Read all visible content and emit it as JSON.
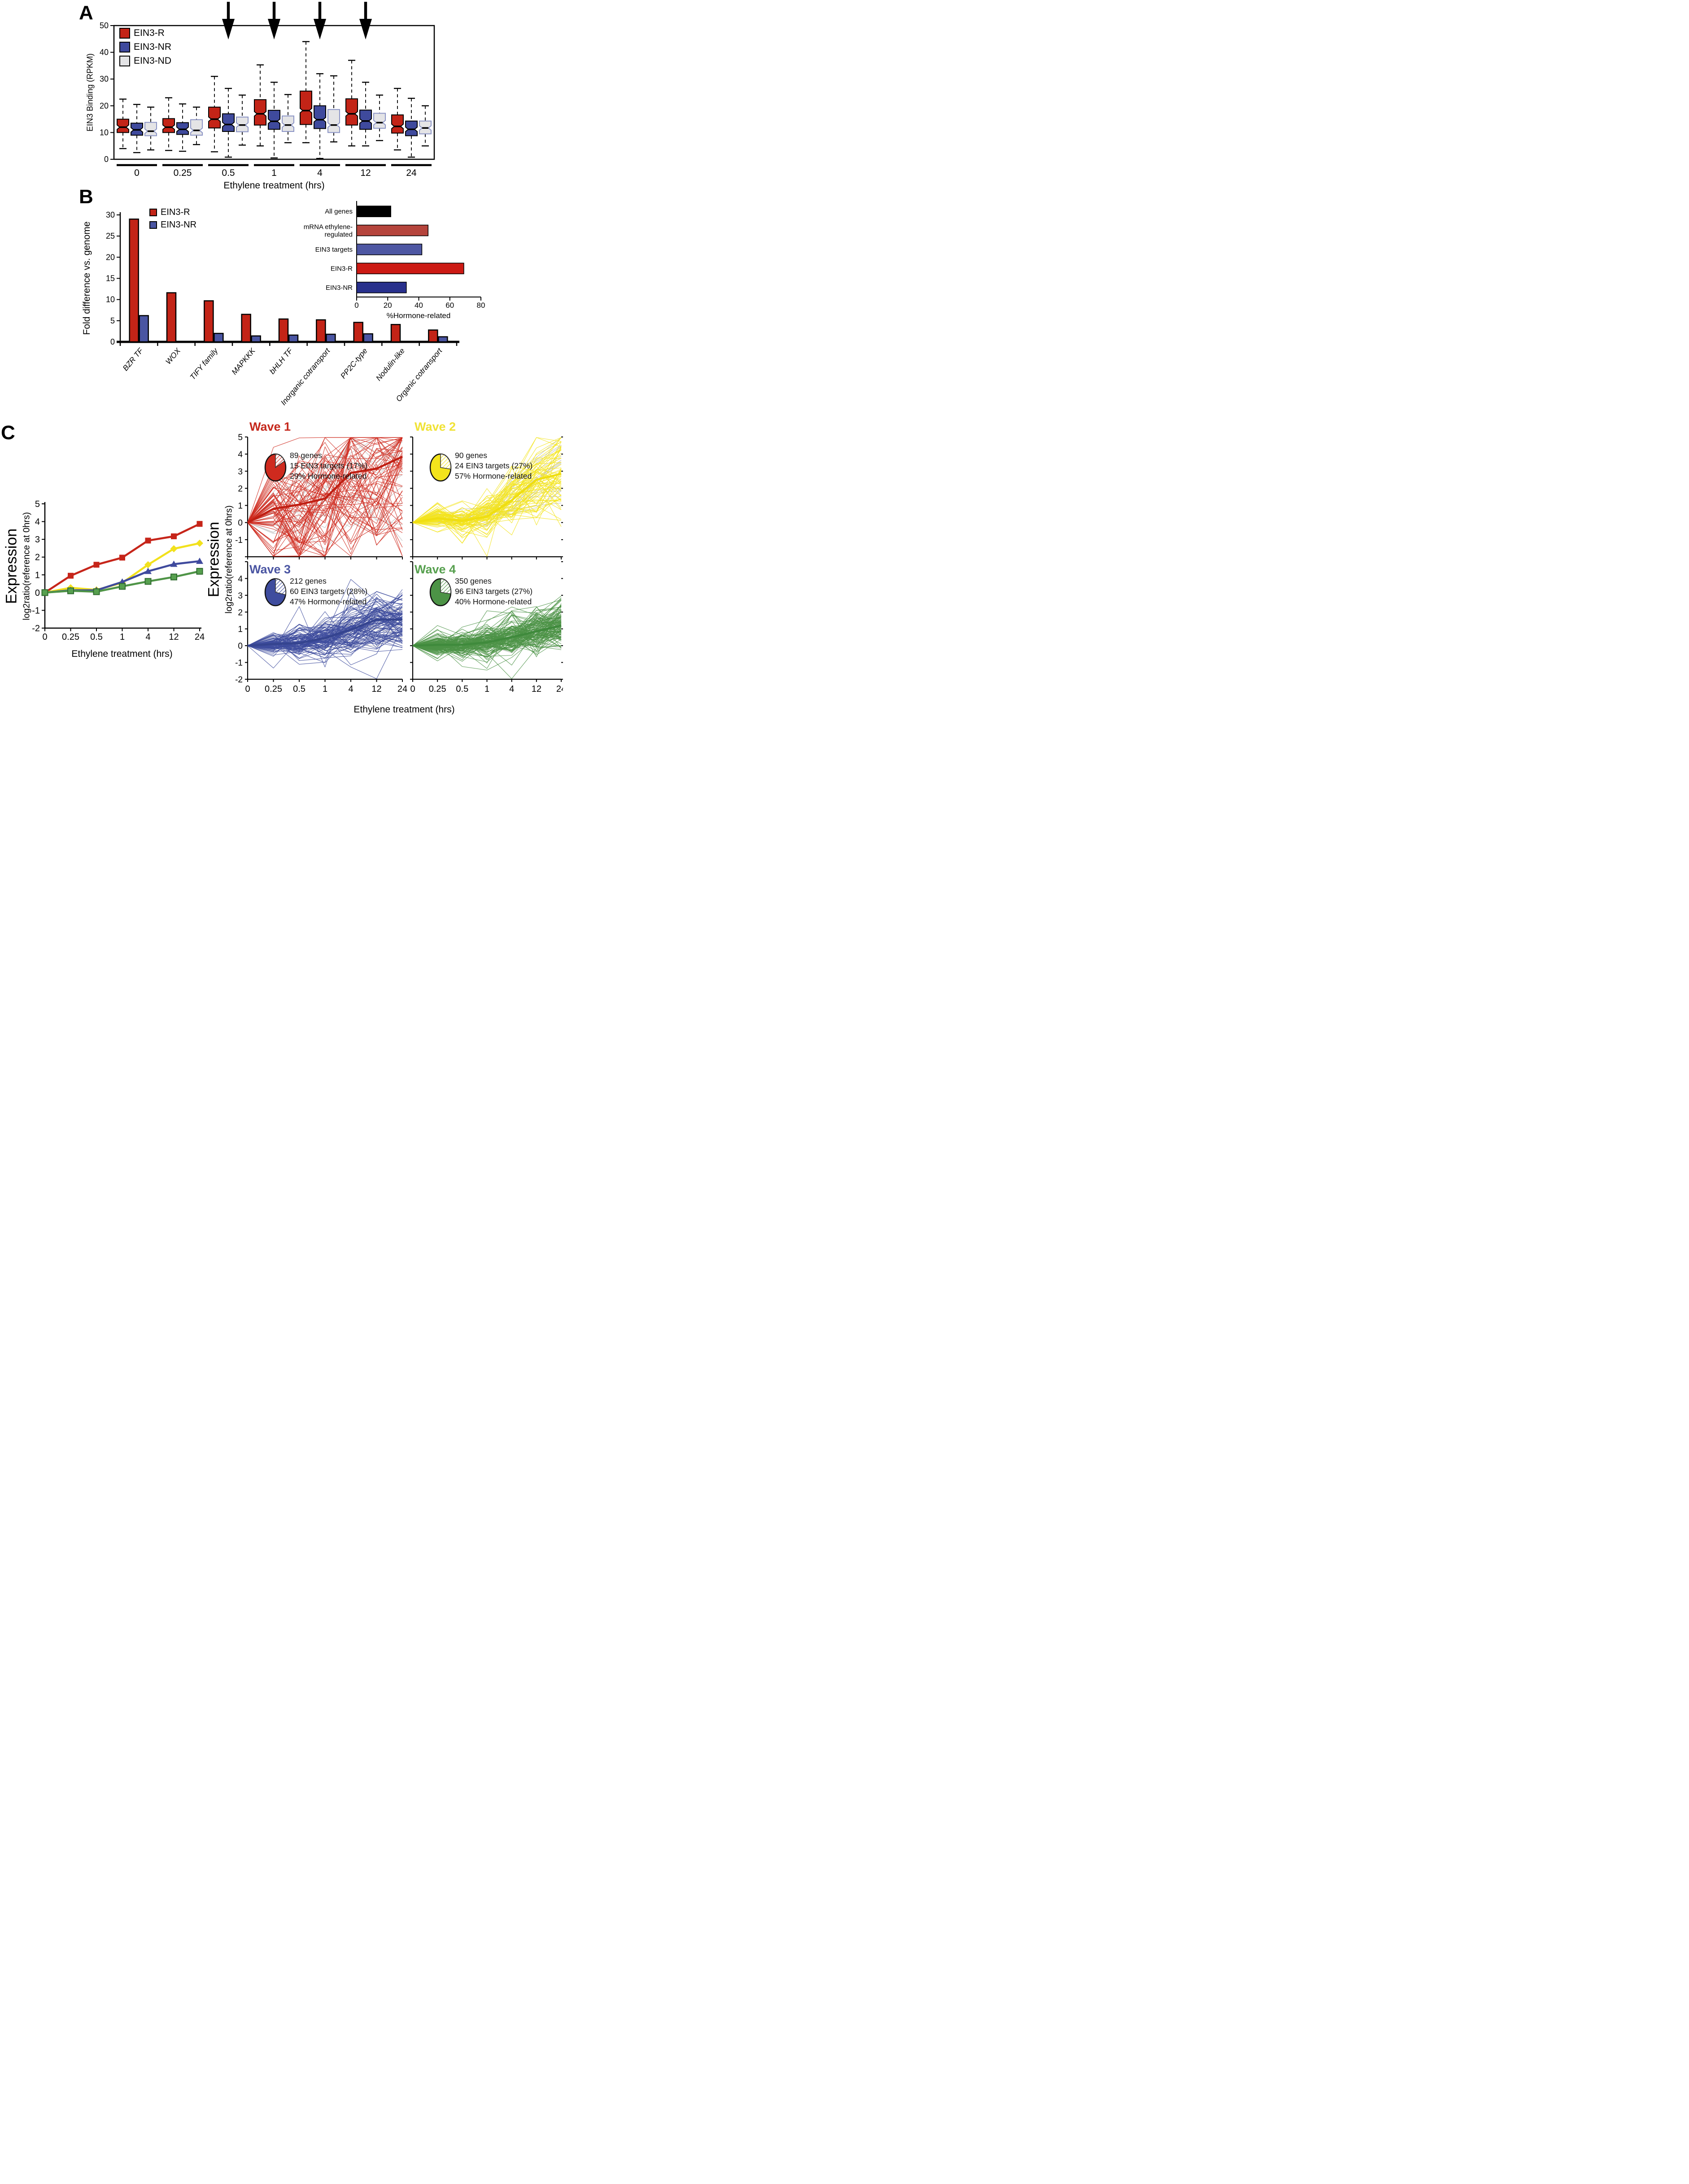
{
  "c_shared": {
    "ylabel": "Expression",
    "ylabel_sub": "log2ratio(reference at 0hrs)",
    "xlabel": "Ethylene treatment (hrs)"
  },
  "chart_data": [
    {
      "id": "panelA",
      "type": "boxplot",
      "panel_label": "A",
      "ylabel": "EIN3 Binding (RPKM)",
      "xlabel": "Ethylene treatment (hrs)",
      "ylim": [
        0,
        50
      ],
      "yticks": [
        0,
        10,
        20,
        30,
        40,
        50
      ],
      "categories": [
        "0",
        "0.25",
        "0.5",
        "1",
        "4",
        "12",
        "24"
      ],
      "arrows_at_categories": [
        "0.5",
        "1",
        "4",
        "12"
      ],
      "series": [
        {
          "name": "EIN3-R",
          "color": "#C32417",
          "edge": "#000000",
          "boxes": [
            [
              4,
              10,
              12,
              15,
              22.5
            ],
            [
              3.3,
              10,
              12,
              15.2,
              23
            ],
            [
              2.8,
              11.7,
              15,
              19.5,
              31
            ],
            [
              5,
              12.8,
              17,
              22.3,
              35.3
            ],
            [
              6.2,
              13,
              18.2,
              25.5,
              44
            ],
            [
              5,
              12.8,
              17,
              22.6,
              37
            ],
            [
              3.5,
              9.8,
              12.3,
              16.6,
              26.5
            ]
          ]
        },
        {
          "name": "EIN3-NR",
          "color": "#3F4A9D",
          "edge": "#000000",
          "boxes": [
            [
              2.5,
              9,
              11,
              13.5,
              20.5
            ],
            [
              3,
              9.3,
              11.2,
              13.7,
              20.7
            ],
            [
              0.8,
              10.4,
              13,
              17,
              26.5
            ],
            [
              0.5,
              11.2,
              14.2,
              18.3,
              28.8
            ],
            [
              0.3,
              11.5,
              14.8,
              20,
              32
            ],
            [
              5,
              11.2,
              14.3,
              18.4,
              28.8
            ],
            [
              0.8,
              8.8,
              11.2,
              14.3,
              22.8
            ]
          ]
        },
        {
          "name": "EIN3-ND",
          "color": "#E4E4E6",
          "edge": "#8B94C5",
          "boxes": [
            [
              3.5,
              8.8,
              10.5,
              13.8,
              19.5
            ],
            [
              5.5,
              9,
              10.8,
              14.8,
              19.5
            ],
            [
              5.3,
              10.3,
              12.8,
              15.8,
              24
            ],
            [
              6.2,
              10.4,
              12.8,
              16.2,
              24.2
            ],
            [
              6.5,
              10,
              12.8,
              18.6,
              31.2
            ],
            [
              7,
              11.6,
              13.7,
              17.2,
              24
            ],
            [
              5,
              9.5,
              11.7,
              14.3,
              20
            ]
          ]
        }
      ]
    },
    {
      "id": "panelB",
      "type": "bar",
      "panel_label": "B",
      "ylabel": "Fold difference vs. genome",
      "ylim": [
        0,
        30
      ],
      "yticks": [
        0,
        5,
        10,
        15,
        20,
        25,
        30
      ],
      "categories": [
        "BZR TF",
        "WOX",
        "TIFY family",
        "MAPKKK",
        "bHLH TF",
        "Inorganic cotransport",
        "PP2C-type",
        "Nodulin-like",
        "Organic cotransport"
      ],
      "series": [
        {
          "name": "EIN3-R",
          "color": "#C32417",
          "values": [
            29,
            11.6,
            9.7,
            6.5,
            5.4,
            5.2,
            4.6,
            4.1,
            2.8
          ]
        },
        {
          "name": "EIN3-NR",
          "color": "#4A55A2",
          "values": [
            6.2,
            0,
            2,
            1.4,
            1.6,
            1.8,
            1.9,
            0,
            1.2
          ]
        }
      ]
    },
    {
      "id": "panelB_inset",
      "type": "bar-horizontal",
      "xlabel": "%Hormone-related",
      "xlim": [
        0,
        80
      ],
      "xticks": [
        0,
        20,
        40,
        60,
        80
      ],
      "categories": [
        "All genes",
        "mRNA ethylene-regulated",
        "EIN3 targets",
        "EIN3-R",
        "EIN3-NR"
      ],
      "values": [
        22,
        46,
        42,
        69,
        32
      ],
      "colors": [
        "#000000",
        "#B5443C",
        "#4E57A3",
        "#CC1A14",
        "#28308C"
      ]
    },
    {
      "id": "panelC_left",
      "type": "line",
      "panel_label": "C",
      "ylabel": "Expression",
      "ylabel_sub": "log2ratio(reference at 0hrs)",
      "xlabel": "Ethylene treatment (hrs)",
      "ylim": [
        -2,
        5
      ],
      "yticks": [
        -2,
        -1,
        0,
        1,
        2,
        3,
        4,
        5
      ],
      "categories": [
        "0",
        "0.25",
        "0.5",
        "1",
        "4",
        "12",
        "24"
      ],
      "series": [
        {
          "name": "Wave 1",
          "color": "#C6251A",
          "marker": "square",
          "values": [
            0,
            0.95,
            1.57,
            1.97,
            2.93,
            3.17,
            3.87
          ]
        },
        {
          "name": "Wave 2",
          "color": "#F2E11C",
          "marker": "diamond",
          "values": [
            0,
            0.27,
            0.15,
            0.55,
            1.57,
            2.47,
            2.78
          ]
        },
        {
          "name": "Wave 3",
          "color": "#3F4A9D",
          "marker": "triangle",
          "values": [
            0,
            0.13,
            0.13,
            0.6,
            1.2,
            1.6,
            1.77
          ]
        },
        {
          "name": "Wave 4",
          "color": "#4F9447",
          "marker": "square-green",
          "values": [
            0,
            0.1,
            0.05,
            0.35,
            0.63,
            0.88,
            1.2
          ]
        }
      ]
    },
    {
      "id": "wave1",
      "type": "line-ensemble",
      "title": "Wave 1",
      "title_color": "#C5281C",
      "color": "#CF2A1E",
      "bold_color": "#C01F13",
      "n_genes": 89,
      "pie_fraction": 0.17,
      "stats": [
        "89 genes",
        "15 EIN3 targets (17%)",
        "29% Hormone-related"
      ],
      "mean": [
        0,
        0.8,
        1.05,
        1.4,
        2.9,
        3.15,
        3.85
      ],
      "ylim": [
        -2,
        5
      ],
      "categories": [
        "0",
        "0.25",
        "0.5",
        "1",
        "4",
        "12",
        "24"
      ]
    },
    {
      "id": "wave2",
      "type": "line-ensemble",
      "title": "Wave 2",
      "title_color": "#F0E235",
      "color": "#F3E41C",
      "bold_color": "#EFDE10",
      "n_genes": 90,
      "pie_fraction": 0.27,
      "stats": [
        "90 genes",
        "24 EIN3 targets (27%)",
        "57% Hormone-related"
      ],
      "mean": [
        0,
        0.25,
        0.1,
        0.35,
        1.3,
        2.5,
        2.85
      ],
      "ylim": [
        -2,
        5
      ],
      "categories": [
        "0",
        "0.25",
        "0.5",
        "1",
        "4",
        "12",
        "24"
      ]
    },
    {
      "id": "wave3",
      "type": "line-ensemble",
      "title": "Wave 3",
      "title_color": "#4A55A2",
      "color": "#3E4C9E",
      "bold_color": "#35448F",
      "n_genes": 212,
      "pie_fraction": 0.28,
      "stats": [
        "212 genes",
        "60 EIN3 targets (28%)",
        "47% Hormone-related"
      ],
      "mean": [
        0,
        0.1,
        0.15,
        0.45,
        0.95,
        1.55,
        1.55
      ],
      "ylim": [
        -2,
        5
      ],
      "categories": [
        "0",
        "0.25",
        "0.5",
        "1",
        "4",
        "12",
        "24"
      ]
    },
    {
      "id": "wave4",
      "type": "line-ensemble",
      "title": "Wave 4",
      "title_color": "#57A04F",
      "color": "#4C9346",
      "bold_color": "#3F8A3C",
      "n_genes": 350,
      "pie_fraction": 0.27,
      "stats": [
        "350 genes",
        "96 EIN3 targets (27%)",
        "40% Hormone-related"
      ],
      "mean": [
        0,
        0.05,
        0.05,
        0.2,
        0.5,
        0.85,
        1.2
      ],
      "ylim": [
        -2,
        5
      ],
      "categories": [
        "0",
        "0.25",
        "0.5",
        "1",
        "4",
        "12",
        "24"
      ]
    }
  ]
}
